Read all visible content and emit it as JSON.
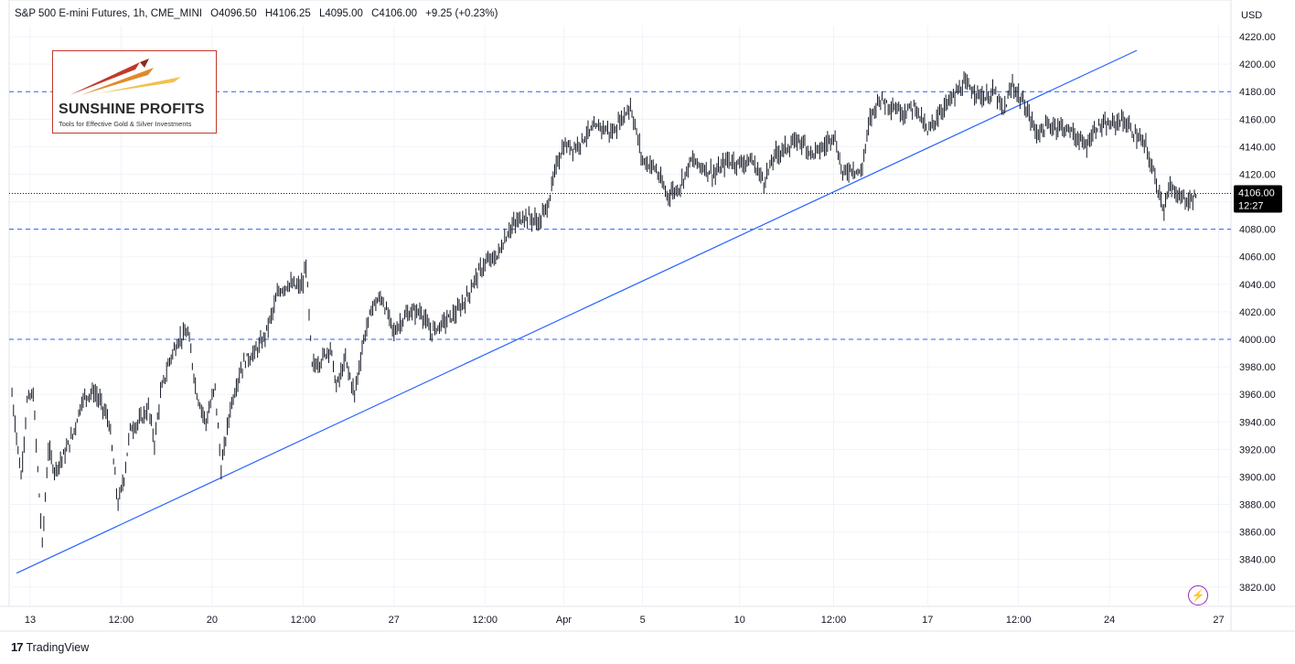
{
  "header": {
    "symbol": "S&P 500 E-mini Futures, 1h, CME_MINI",
    "open": "O4096.50",
    "high": "H4106.25",
    "low": "L4095.00",
    "close": "C4106.00",
    "change": "+9.25 (+0.23%)"
  },
  "logo": {
    "name": "SUNSHINE PROFITS",
    "tagline": "Tools for Effective Gold & Silver Investments"
  },
  "footer": {
    "brand": "TradingView",
    "icon": "tradingview-logo-icon"
  },
  "price_axis": {
    "currency": "USD"
  },
  "last_price": {
    "value": "4106.00",
    "countdown": "12:27"
  },
  "colors": {
    "candle": "#131722",
    "trendline": "#2962ff",
    "level_line": "#2962ff",
    "last_price_label_bg": "#000000",
    "grid": "#f0f3fa",
    "flash_icon": "#9c27b0"
  },
  "chart_data": {
    "type": "line",
    "title": "S&P 500 E-mini Futures, 1h, CME_MINI",
    "ylim": [
      3805,
      4235
    ],
    "y_ticks": [
      "3820.00",
      "3840.00",
      "3860.00",
      "3880.00",
      "3900.00",
      "3920.00",
      "3940.00",
      "3960.00",
      "3980.00",
      "4000.00",
      "4020.00",
      "4040.00",
      "4060.00",
      "4080.00",
      "4100.00",
      "4120.00",
      "4140.00",
      "4160.00",
      "4180.00",
      "4200.00",
      "4220.00"
    ],
    "x_ticks": [
      {
        "label": "13",
        "t": 0.0
      },
      {
        "label": "12:00",
        "t": 3.0
      },
      {
        "label": "20",
        "t": 6.0
      },
      {
        "label": "12:00",
        "t": 9.0
      },
      {
        "label": "27",
        "t": 12.0
      },
      {
        "label": "12:00",
        "t": 15.0
      },
      {
        "label": "Apr",
        "t": 17.6
      },
      {
        "label": "5",
        "t": 20.2
      },
      {
        "label": "10",
        "t": 23.4
      },
      {
        "label": "12:00",
        "t": 26.5
      },
      {
        "label": "17",
        "t": 29.6
      },
      {
        "label": "12:00",
        "t": 32.6
      },
      {
        "label": "24",
        "t": 35.6
      },
      {
        "label": "27",
        "t": 39.2
      }
    ],
    "horizontal_levels": [
      4180,
      4080,
      4000
    ],
    "last_price": 4106,
    "trendline": {
      "from": {
        "t": -0.45,
        "y": 3830
      },
      "to": {
        "t": 36.5,
        "y": 4210
      }
    },
    "series": [
      {
        "x": [
          -0.6,
          -0.3,
          -0.1,
          0.1,
          0.4,
          0.6,
          0.8,
          1.1,
          1.4,
          1.7,
          1.9,
          2.1,
          2.3,
          2.6,
          2.9,
          3.1,
          3.3,
          3.6,
          3.9,
          4.1,
          4.3,
          4.6,
          4.9,
          5.2,
          5.5,
          5.8,
          6.1,
          6.3,
          6.6,
          6.9,
          7.1,
          7.4,
          7.7,
          8.0,
          8.2,
          8.5,
          8.8,
          9.0,
          9.1,
          9.3,
          9.6,
          9.9,
          10.1,
          10.4,
          10.7,
          11.0,
          11.3,
          11.6,
          12.0,
          12.3,
          12.6,
          12.9,
          13.2,
          13.5,
          13.8,
          14.1,
          14.4,
          14.7,
          15.0,
          15.4,
          15.8,
          16.3,
          16.8,
          17.1,
          17.4,
          17.6,
          18.0,
          18.4,
          18.8,
          19.2,
          19.5,
          19.8,
          20.2,
          20.6,
          21.0,
          21.4,
          21.8,
          22.2,
          22.6,
          23.0,
          23.4,
          23.8,
          24.2,
          24.6,
          25.0,
          25.4,
          25.8,
          26.2,
          26.5,
          26.8,
          27.1,
          27.4,
          27.7,
          28.0,
          28.4,
          28.8,
          29.2,
          29.6,
          30.0,
          30.4,
          30.8,
          31.2,
          31.5,
          31.8,
          32.1,
          32.4,
          32.8,
          33.2,
          33.6,
          34.0,
          34.4,
          34.8,
          35.2,
          35.6,
          36.0,
          36.4,
          36.8,
          37.2,
          37.4,
          37.6,
          37.9,
          38.2,
          38.5
        ],
        "y": [
          3960,
          3900,
          3955,
          3960,
          3850,
          3920,
          3905,
          3915,
          3930,
          3955,
          3960,
          3962,
          3955,
          3940,
          3880,
          3900,
          3935,
          3940,
          3950,
          3925,
          3960,
          3985,
          4000,
          4005,
          3960,
          3940,
          3965,
          3905,
          3950,
          3975,
          3985,
          3990,
          4000,
          4020,
          4035,
          4040,
          4038,
          4040,
          4055,
          3980,
          3985,
          3995,
          3965,
          3985,
          3960,
          4000,
          4025,
          4030,
          4005,
          4015,
          4020,
          4020,
          4005,
          4010,
          4015,
          4020,
          4030,
          4045,
          4055,
          4060,
          4080,
          4090,
          4085,
          4100,
          4130,
          4140,
          4140,
          4150,
          4155,
          4150,
          4160,
          4170,
          4130,
          4125,
          4105,
          4110,
          4130,
          4125,
          4120,
          4130,
          4128,
          4130,
          4115,
          4135,
          4140,
          4145,
          4135,
          4140,
          4150,
          4120,
          4125,
          4120,
          4160,
          4175,
          4170,
          4165,
          4170,
          4150,
          4165,
          4175,
          4185,
          4180,
          4175,
          4180,
          4165,
          4185,
          4170,
          4150,
          4155,
          4155,
          4150,
          4140,
          4155,
          4155,
          4160,
          4150,
          4140,
          4110,
          4095,
          4110,
          4105,
          4100,
          4106
        ]
      }
    ]
  }
}
